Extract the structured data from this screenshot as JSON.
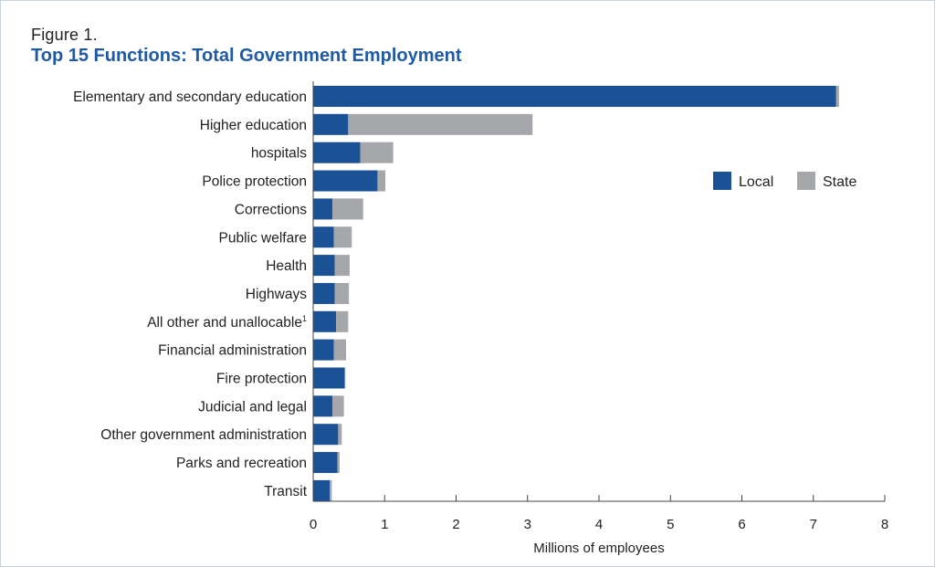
{
  "figure": {
    "label": "Figure 1.",
    "title": "Top 15 Functions: Total Government Employment"
  },
  "chart_data": {
    "type": "bar",
    "orientation": "horizontal",
    "stacked": true,
    "categories": [
      "Elementary and secondary education",
      "Higher education",
      "hospitals",
      "Police protection",
      "Corrections",
      "Public welfare",
      "Health",
      "Highways",
      "All other and unallocable",
      "Financial administration",
      "Fire protection",
      "Judicial and legal",
      "Other government administration",
      "Parks and recreation",
      "Transit"
    ],
    "category_footnotes": {
      "8": "1"
    },
    "series": [
      {
        "name": "Local",
        "color": "#1b5296",
        "values": [
          7.32,
          0.49,
          0.66,
          0.9,
          0.27,
          0.29,
          0.3,
          0.3,
          0.32,
          0.29,
          0.44,
          0.27,
          0.35,
          0.34,
          0.23
        ]
      },
      {
        "name": "State",
        "color": "#a5a7aa",
        "values": [
          0.04,
          2.58,
          0.46,
          0.11,
          0.43,
          0.25,
          0.21,
          0.2,
          0.17,
          0.17,
          0.01,
          0.16,
          0.05,
          0.03,
          0.03
        ]
      }
    ],
    "xlabel": "Millions of employees",
    "ylabel": "",
    "xlim": [
      0,
      8
    ],
    "xticks": [
      0,
      1,
      2,
      3,
      4,
      5,
      6,
      7,
      8
    ],
    "grid": false,
    "legend": {
      "placement": "right",
      "entries": [
        "Local",
        "State"
      ]
    }
  }
}
